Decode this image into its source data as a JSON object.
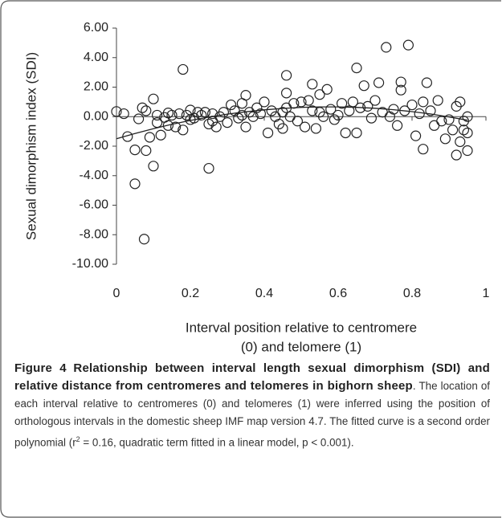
{
  "chart_data": {
    "type": "scatter",
    "ylabel": "Sexual dimorphism index (SDI)",
    "xlabel": [
      "Interval position relative to centromere",
      "(0) and telomere (1)"
    ],
    "xlim": [
      0,
      1
    ],
    "xticks": [
      0,
      0.2,
      0.4,
      0.6,
      0.8,
      1
    ],
    "ylim": [
      -10,
      6
    ],
    "yticks": [
      {
        "value": 6,
        "label": "6.00"
      },
      {
        "value": 4,
        "label": "4.00"
      },
      {
        "value": 2,
        "label": "2.00"
      },
      {
        "value": 0,
        "label": "0.00"
      },
      {
        "value": -2,
        "label": "-2.00"
      },
      {
        "value": -4,
        "label": "-4.00"
      },
      {
        "value": -6,
        "label": "-6.00"
      },
      {
        "value": -8,
        "label": "-8.00"
      },
      {
        "value": -10,
        "label": "-10.00"
      }
    ],
    "color": "#222222",
    "x": [
      0.0,
      0.02,
      0.03,
      0.05,
      0.05,
      0.06,
      0.07,
      0.075,
      0.08,
      0.08,
      0.09,
      0.1,
      0.1,
      0.11,
      0.11,
      0.12,
      0.13,
      0.14,
      0.14,
      0.15,
      0.16,
      0.17,
      0.18,
      0.18,
      0.19,
      0.2,
      0.2,
      0.21,
      0.22,
      0.23,
      0.24,
      0.25,
      0.25,
      0.26,
      0.26,
      0.27,
      0.28,
      0.29,
      0.3,
      0.31,
      0.32,
      0.33,
      0.34,
      0.34,
      0.35,
      0.35,
      0.36,
      0.37,
      0.38,
      0.39,
      0.4,
      0.41,
      0.42,
      0.43,
      0.44,
      0.45,
      0.45,
      0.46,
      0.46,
      0.46,
      0.47,
      0.48,
      0.49,
      0.5,
      0.51,
      0.52,
      0.53,
      0.53,
      0.54,
      0.55,
      0.55,
      0.56,
      0.57,
      0.58,
      0.59,
      0.6,
      0.61,
      0.62,
      0.63,
      0.64,
      0.65,
      0.65,
      0.66,
      0.67,
      0.68,
      0.69,
      0.7,
      0.71,
      0.72,
      0.73,
      0.74,
      0.75,
      0.76,
      0.77,
      0.77,
      0.78,
      0.79,
      0.8,
      0.81,
      0.82,
      0.83,
      0.83,
      0.84,
      0.85,
      0.86,
      0.87,
      0.88,
      0.89,
      0.9,
      0.91,
      0.92,
      0.92,
      0.93,
      0.93,
      0.94,
      0.95,
      0.95,
      0.95,
      0.94
    ],
    "values": [
      0.35,
      0.2,
      -1.35,
      -2.25,
      -4.55,
      -0.15,
      0.6,
      -8.3,
      0.4,
      -2.3,
      -1.4,
      1.2,
      -3.35,
      -0.4,
      0.1,
      -1.25,
      -0.05,
      0.25,
      -0.6,
      0.1,
      -0.7,
      0.2,
      -0.9,
      3.2,
      0.1,
      0.45,
      -0.2,
      -0.1,
      0.3,
      0.1,
      0.3,
      -3.5,
      -0.5,
      -0.3,
      0.2,
      -0.7,
      0.0,
      0.3,
      -0.4,
      0.8,
      0.4,
      -0.1,
      0.1,
      0.9,
      1.45,
      -0.7,
      0.3,
      0.0,
      0.6,
      0.2,
      1.0,
      -1.1,
      0.4,
      0.0,
      -0.5,
      0.3,
      -0.8,
      2.8,
      1.6,
      0.6,
      0.0,
      0.9,
      -0.3,
      1.0,
      -0.7,
      1.1,
      0.4,
      2.2,
      -0.8,
      0.3,
      1.5,
      0.0,
      1.85,
      0.5,
      -0.2,
      0.1,
      0.9,
      -1.1,
      0.4,
      1.0,
      3.3,
      -1.1,
      0.6,
      2.1,
      0.7,
      -0.1,
      1.1,
      2.3,
      0.3,
      4.7,
      0.0,
      0.5,
      -0.6,
      1.8,
      2.35,
      0.4,
      4.85,
      0.8,
      -1.3,
      0.2,
      1.0,
      -2.2,
      2.3,
      0.4,
      -0.6,
      1.1,
      -0.3,
      -1.5,
      -0.2,
      -0.9,
      -2.6,
      0.7,
      1.0,
      -1.7,
      -0.9,
      0.0,
      -2.3,
      -1.1,
      -0.3
    ],
    "fit": {
      "x": [
        0,
        0.05,
        0.1,
        0.15,
        0.2,
        0.25,
        0.3,
        0.35,
        0.4,
        0.45,
        0.5,
        0.55,
        0.6,
        0.65,
        0.7,
        0.75,
        0.8,
        0.85,
        0.9,
        0.95
      ],
      "values": [
        -1.5,
        -1.14,
        -0.82,
        -0.52,
        -0.26,
        -0.03,
        0.17,
        0.33,
        0.46,
        0.56,
        0.63,
        0.66,
        0.66,
        0.63,
        0.57,
        0.47,
        0.34,
        0.18,
        -0.02,
        -0.24
      ]
    }
  },
  "caption": {
    "label": "Figure 4",
    "title": "Relationship between interval length sexual dimorphism (SDI) and relative distance from centromeres and telomeres in bighorn sheep",
    "text1": ". The location of each interval relative to centromeres (0) and telomeres (1) were inferred using the position of orthologous intervals in the domestic sheep IMF map version 4.7. The fitted curve is a second order polynomial (r",
    "sup": "2",
    "text2": " = 0.16, quadratic term fitted in a linear model, p < 0.001)."
  }
}
